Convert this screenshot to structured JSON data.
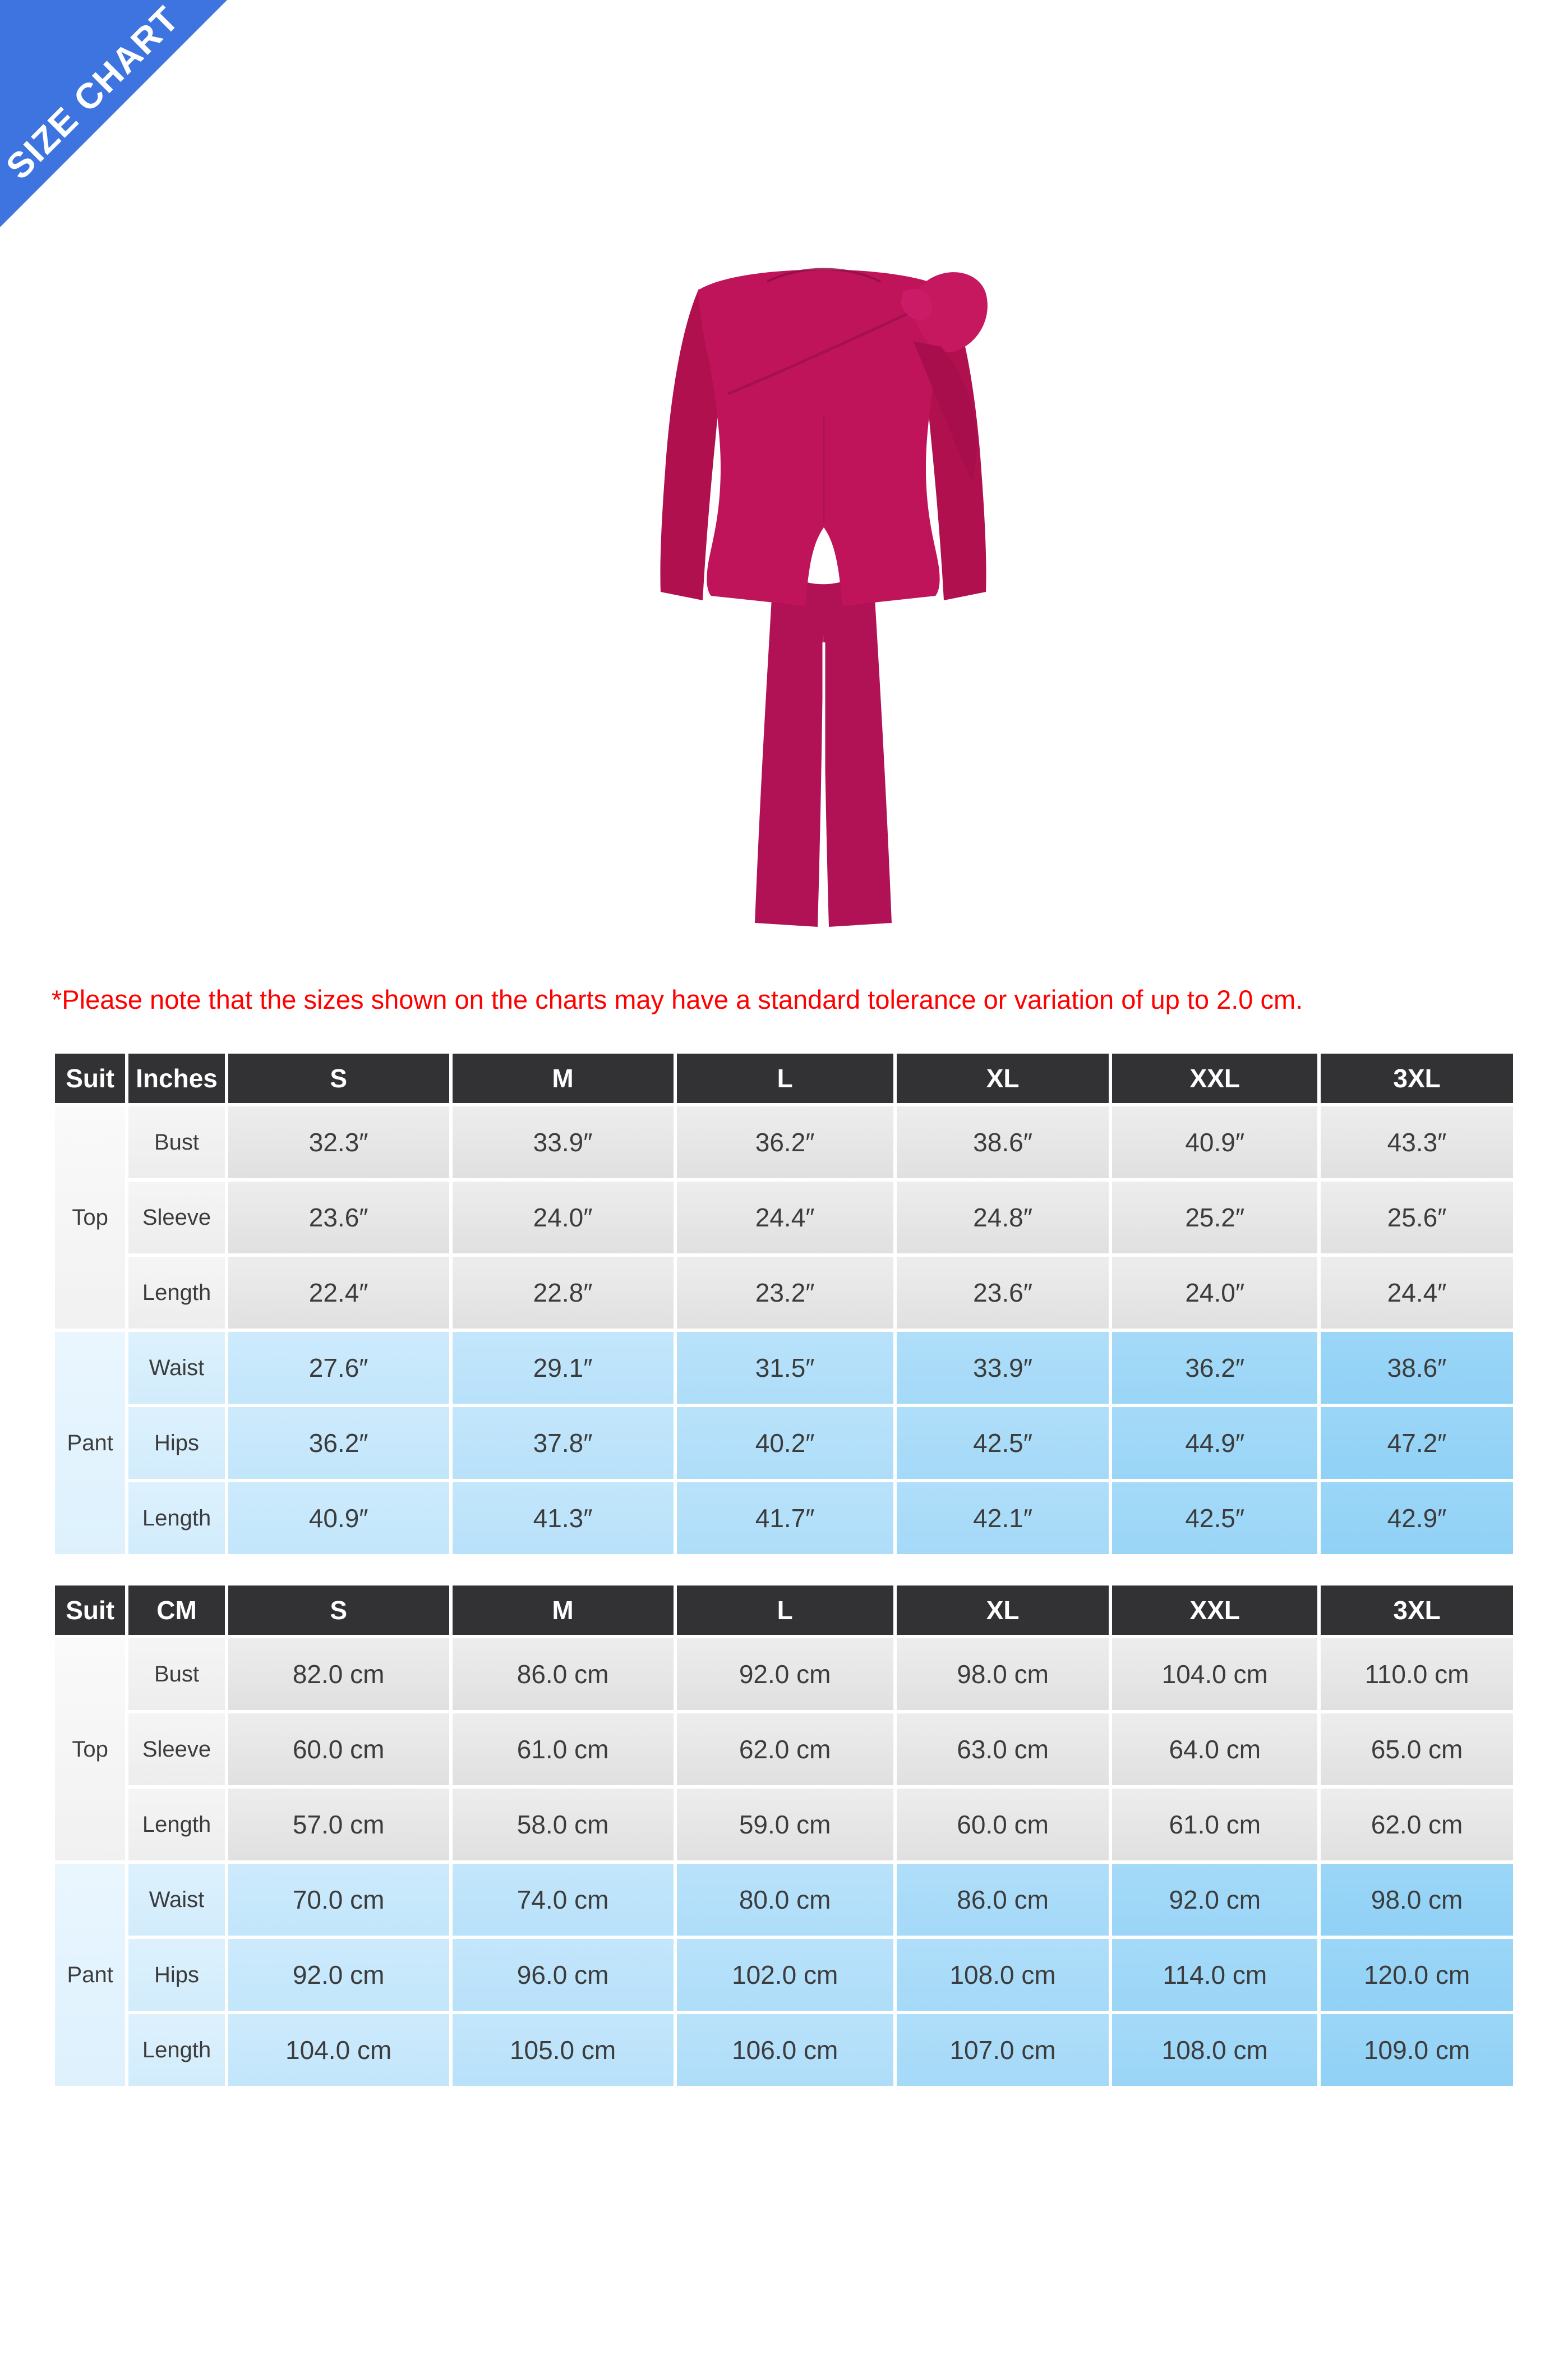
{
  "banner": {
    "label": "SIZE CHART",
    "color": "#3e74df"
  },
  "product": {
    "description": "magenta two-piece suit: long-sleeve top with shoulder bow and straight-leg pants",
    "color": "#bf1459"
  },
  "note": {
    "text": "*Please note that the sizes shown on the charts may have a standard tolerance or variation of up to 2.0 cm.",
    "color": "#ff0000"
  },
  "tables": [
    {
      "id": "inches",
      "corner": "Suit",
      "unit_label": "Inches",
      "sizes": [
        "S",
        "M",
        "L",
        "XL",
        "XXL",
        "3XL"
      ],
      "groups": [
        {
          "label": "Top",
          "rows": [
            {
              "label": "Bust",
              "values": [
                "32.3″",
                "33.9″",
                "36.2″",
                "38.6″",
                "40.9″",
                "43.3″"
              ]
            },
            {
              "label": "Sleeve",
              "values": [
                "23.6″",
                "24.0″",
                "24.4″",
                "24.8″",
                "25.2″",
                "25.6″"
              ]
            },
            {
              "label": "Length",
              "values": [
                "22.4″",
                "22.8″",
                "23.2″",
                "23.6″",
                "24.0″",
                "24.4″"
              ]
            }
          ]
        },
        {
          "label": "Pant",
          "rows": [
            {
              "label": "Waist",
              "values": [
                "27.6″",
                "29.1″",
                "31.5″",
                "33.9″",
                "36.2″",
                "38.6″"
              ]
            },
            {
              "label": "Hips",
              "values": [
                "36.2″",
                "37.8″",
                "40.2″",
                "42.5″",
                "44.9″",
                "47.2″"
              ]
            },
            {
              "label": "Length",
              "values": [
                "40.9″",
                "41.3″",
                "41.7″",
                "42.1″",
                "42.5″",
                "42.9″"
              ]
            }
          ]
        }
      ]
    },
    {
      "id": "cm",
      "corner": "Suit",
      "unit_label": "CM",
      "sizes": [
        "S",
        "M",
        "L",
        "XL",
        "XXL",
        "3XL"
      ],
      "groups": [
        {
          "label": "Top",
          "rows": [
            {
              "label": "Bust",
              "values": [
                "82.0 cm",
                "86.0 cm",
                "92.0 cm",
                "98.0 cm",
                "104.0 cm",
                "110.0 cm"
              ]
            },
            {
              "label": "Sleeve",
              "values": [
                "60.0 cm",
                "61.0 cm",
                "62.0 cm",
                "63.0 cm",
                "64.0 cm",
                "65.0 cm"
              ]
            },
            {
              "label": "Length",
              "values": [
                "57.0 cm",
                "58.0 cm",
                "59.0 cm",
                "60.0 cm",
                "61.0 cm",
                "62.0 cm"
              ]
            }
          ]
        },
        {
          "label": "Pant",
          "rows": [
            {
              "label": "Waist",
              "values": [
                "70.0 cm",
                "74.0 cm",
                "80.0 cm",
                "86.0 cm",
                "92.0 cm",
                "98.0 cm"
              ]
            },
            {
              "label": "Hips",
              "values": [
                "92.0 cm",
                "96.0 cm",
                "102.0 cm",
                "108.0 cm",
                "114.0 cm",
                "120.0 cm"
              ]
            },
            {
              "label": "Length",
              "values": [
                "104.0 cm",
                "105.0 cm",
                "106.0 cm",
                "107.0 cm",
                "108.0 cm",
                "109.0 cm"
              ]
            }
          ]
        }
      ]
    }
  ]
}
